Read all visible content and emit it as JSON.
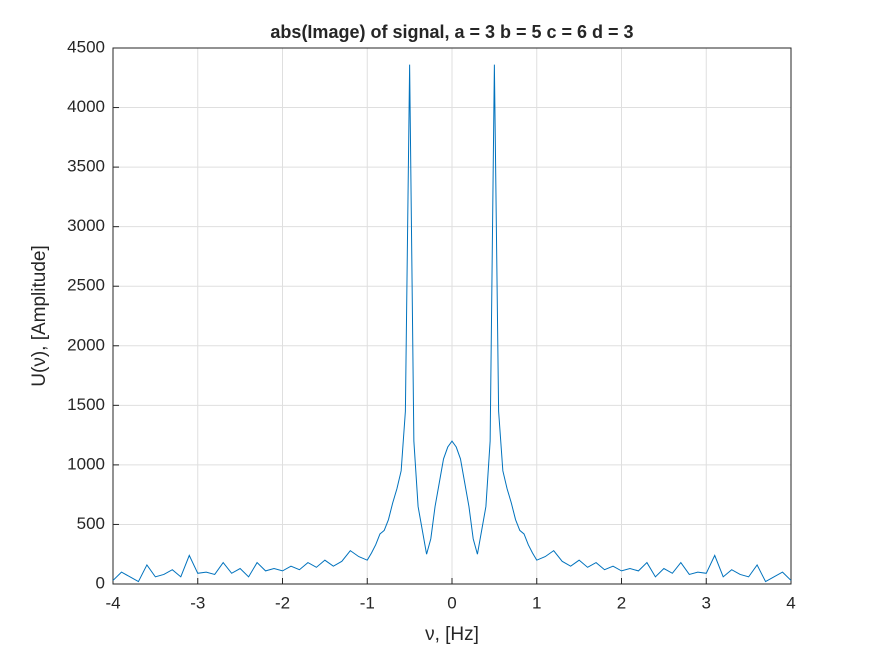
{
  "chart_data": {
    "type": "line",
    "title": "abs(Image) of signal, a = 3 b = 5 c = 6 d = 3",
    "xlabel": "ν, [Hz]",
    "ylabel": "U(ν), [Amplitude]",
    "x": [
      -4,
      -3.9,
      -3.8,
      -3.7,
      -3.6,
      -3.5,
      -3.4,
      -3.3,
      -3.2,
      -3.1,
      -3,
      -2.9,
      -2.8,
      -2.7,
      -2.6,
      -2.5,
      -2.4,
      -2.3,
      -2.2,
      -2.1,
      -2,
      -1.9,
      -1.8,
      -1.7,
      -1.6,
      -1.5,
      -1.4,
      -1.3,
      -1.2,
      -1.1,
      -1,
      -0.95,
      -0.9,
      -0.85,
      -0.8,
      -0.75,
      -0.7,
      -0.65,
      -0.6,
      -0.55,
      -0.5,
      -0.45,
      -0.4,
      -0.35,
      -0.3,
      -0.25,
      -0.2,
      -0.15,
      -0.1,
      -0.05,
      0,
      0.05,
      0.1,
      0.15,
      0.2,
      0.25,
      0.3,
      0.35,
      0.4,
      0.45,
      0.5,
      0.55,
      0.6,
      0.65,
      0.7,
      0.75,
      0.8,
      0.85,
      0.9,
      0.95,
      1,
      1.1,
      1.2,
      1.3,
      1.4,
      1.5,
      1.6,
      1.7,
      1.8,
      1.9,
      2,
      2.1,
      2.2,
      2.3,
      2.4,
      2.5,
      2.6,
      2.7,
      2.8,
      2.9,
      3,
      3.1,
      3.2,
      3.3,
      3.4,
      3.5,
      3.6,
      3.7,
      3.8,
      3.9,
      4
    ],
    "series": [
      {
        "color": "#0072bd",
        "values": [
          30,
          100,
          60,
          20,
          160,
          60,
          80,
          120,
          60,
          240,
          90,
          100,
          80,
          180,
          90,
          130,
          60,
          180,
          110,
          130,
          110,
          150,
          120,
          180,
          140,
          200,
          150,
          190,
          280,
          230,
          200,
          260,
          330,
          420,
          450,
          540,
          680,
          800,
          950,
          1450,
          4360,
          1200,
          650,
          450,
          250,
          380,
          650,
          850,
          1050,
          1150,
          1200,
          1150,
          1050,
          850,
          650,
          380,
          250,
          450,
          650,
          1200,
          4360,
          1450,
          950,
          800,
          680,
          540,
          450,
          420,
          330,
          260,
          200,
          230,
          280,
          190,
          150,
          200,
          140,
          180,
          120,
          150,
          110,
          130,
          110,
          180,
          60,
          130,
          90,
          180,
          80,
          100,
          90,
          240,
          60,
          120,
          80,
          60,
          160,
          20,
          60,
          100,
          30
        ]
      }
    ],
    "xlim": [
      -4,
      4
    ],
    "xticks": [
      -4,
      -3,
      -2,
      -1,
      0,
      1,
      2,
      3,
      4
    ],
    "ylim": [
      0,
      4500
    ],
    "yticks": [
      0,
      500,
      1000,
      1500,
      2000,
      2500,
      3000,
      3500,
      4000,
      4500
    ],
    "grid": true
  }
}
